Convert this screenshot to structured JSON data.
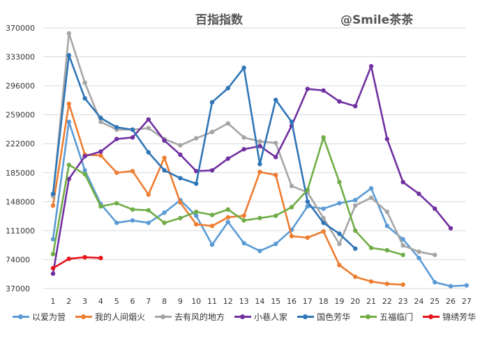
{
  "chart_data": {
    "type": "line",
    "title": "百指指数",
    "subtitle": "@Smile茶茶",
    "xlabel": "",
    "ylabel": "",
    "x": [
      1,
      2,
      3,
      4,
      5,
      6,
      7,
      8,
      9,
      10,
      11,
      12,
      13,
      14,
      15,
      16,
      17,
      18,
      19,
      20,
      21,
      22,
      23,
      24,
      25,
      26,
      27
    ],
    "yticks": [
      37000,
      74000,
      111000,
      148000,
      185000,
      222000,
      259000,
      296000,
      333000,
      370000
    ],
    "ylim": [
      37000,
      370000
    ],
    "grid": true,
    "legend_position": "bottom",
    "series": [
      {
        "name": "以爱为营",
        "color": "#5b9bd5",
        "values": [
          100000,
          250000,
          188000,
          145000,
          121000,
          124000,
          121000,
          134000,
          150000,
          130000,
          93000,
          122000,
          95000,
          85000,
          94000,
          112000,
          142000,
          139000,
          146000,
          150000,
          165000,
          117000,
          100000,
          76000,
          45000,
          40000,
          41000
        ]
      },
      {
        "name": "我的人间烟火",
        "color": "#ed7d31",
        "values": [
          143000,
          273000,
          208000,
          207000,
          185000,
          187000,
          157000,
          204000,
          147000,
          119000,
          117000,
          128000,
          130000,
          186000,
          182000,
          104000,
          102000,
          110000,
          67000,
          52000,
          46000,
          43000,
          42000,
          null,
          null,
          null,
          null
        ]
      },
      {
        "name": "去有风的地方",
        "color": "#a5a5a5",
        "values": [
          155000,
          363000,
          300000,
          250000,
          240000,
          240000,
          242000,
          228000,
          220000,
          229000,
          237000,
          248000,
          230000,
          225000,
          223000,
          168000,
          160000,
          127000,
          94000,
          143000,
          153000,
          135000,
          92000,
          84000,
          80000,
          null,
          null
        ]
      },
      {
        "name": "小巷人家",
        "color": "#7030a0",
        "values": [
          56000,
          177000,
          206000,
          212000,
          228000,
          230000,
          253000,
          226000,
          208000,
          187000,
          188000,
          203000,
          215000,
          219000,
          205000,
          245000,
          292000,
          290000,
          276000,
          270000,
          321000,
          228000,
          173000,
          158000,
          139000,
          114000,
          null
        ]
      },
      {
        "name": "国色芳华",
        "color": "#2e75b6",
        "values": [
          158000,
          335000,
          280000,
          255000,
          243000,
          240000,
          211000,
          188000,
          178000,
          171000,
          275000,
          293000,
          319000,
          196000,
          278000,
          250000,
          148000,
          121000,
          107000,
          88000,
          null,
          null,
          null,
          null,
          null,
          null,
          null
        ]
      },
      {
        "name": "五福临门",
        "color": "#70ad47",
        "values": [
          81000,
          195000,
          183000,
          142000,
          146000,
          138000,
          137000,
          121000,
          127000,
          135000,
          131000,
          138000,
          124000,
          127000,
          130000,
          141000,
          163000,
          230000,
          173000,
          111000,
          89000,
          86000,
          80000,
          null,
          null,
          null,
          null
        ]
      },
      {
        "name": "锦绣芳华",
        "color": "#e8141c",
        "values": [
          63000,
          75000,
          77000,
          76000,
          null,
          null,
          null,
          null,
          null,
          null,
          null,
          null,
          null,
          null,
          null,
          null,
          null,
          null,
          null,
          null,
          null,
          null,
          null,
          null,
          null,
          null,
          null
        ]
      }
    ]
  }
}
